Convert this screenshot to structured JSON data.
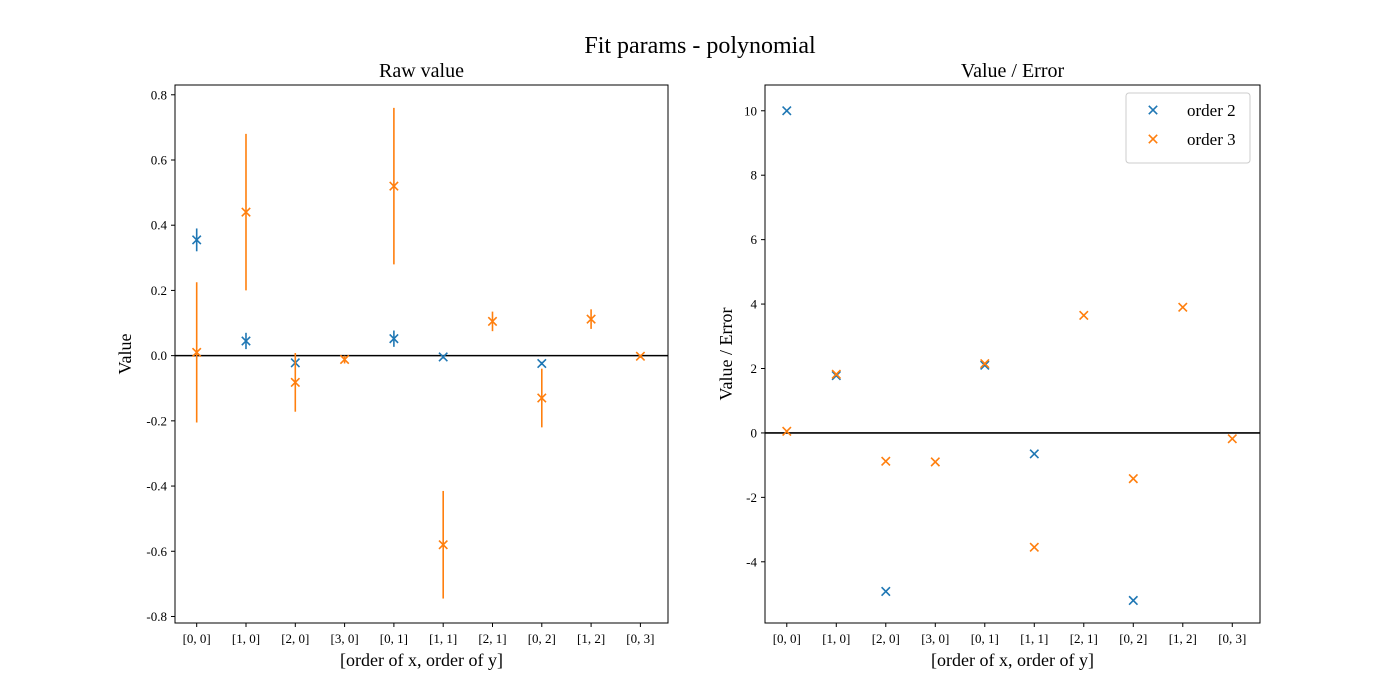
{
  "figure": {
    "suptitle": "Fit params - polynomial",
    "colors": {
      "order2": "#1f77b4",
      "order3": "#ff7f0e"
    }
  },
  "chart_data": [
    {
      "type": "scatter",
      "title": "Raw value",
      "xlabel": "[order of x, order of y]",
      "ylabel": "Value",
      "categories": [
        "[0, 0]",
        "[1, 0]",
        "[2, 0]",
        "[3, 0]",
        "[0, 1]",
        "[1, 1]",
        "[2, 1]",
        "[0, 2]",
        "[1, 2]",
        "[0, 3]"
      ],
      "ylim": [
        -0.82,
        0.83
      ],
      "yticks": [
        -0.8,
        -0.6,
        -0.4,
        -0.2,
        0.0,
        0.2,
        0.4,
        0.6,
        0.8
      ],
      "ytick_labels": [
        "-0.8",
        "-0.6",
        "-0.4",
        "-0.2",
        "0.0",
        "0.2",
        "0.4",
        "0.6",
        "0.8"
      ],
      "reference_line": 0,
      "series": [
        {
          "color": "#1f77b4",
          "points": [
            {
              "x": 0,
              "y": 0.355,
              "err": 0.035
            },
            {
              "x": 1,
              "y": 0.045,
              "err": 0.025
            },
            {
              "x": 2,
              "y": -0.022,
              "err": 0.005
            },
            {
              "x": 4,
              "y": 0.052,
              "err": 0.025
            },
            {
              "x": 5,
              "y": -0.004,
              "err": 0.005
            },
            {
              "x": 7,
              "y": -0.024,
              "err": 0.005
            }
          ]
        },
        {
          "color": "#ff7f0e",
          "points": [
            {
              "x": 0,
              "y": 0.01,
              "err": 0.215
            },
            {
              "x": 1,
              "y": 0.44,
              "err": 0.24
            },
            {
              "x": 2,
              "y": -0.082,
              "err": 0.09
            },
            {
              "x": 3,
              "y": -0.012,
              "err": 0.012
            },
            {
              "x": 4,
              "y": 0.52,
              "err": 0.24
            },
            {
              "x": 5,
              "y": -0.58,
              "err": 0.165
            },
            {
              "x": 6,
              "y": 0.105,
              "err": 0.03
            },
            {
              "x": 7,
              "y": -0.13,
              "err": 0.09
            },
            {
              "x": 8,
              "y": 0.112,
              "err": 0.03
            },
            {
              "x": 9,
              "y": -0.002,
              "err": 0.005
            }
          ]
        }
      ]
    },
    {
      "type": "scatter",
      "title": "Value / Error",
      "xlabel": "[order of x, order of y]",
      "ylabel": "Value / Error",
      "categories": [
        "[0, 0]",
        "[1, 0]",
        "[2, 0]",
        "[3, 0]",
        "[0, 1]",
        "[1, 1]",
        "[2, 1]",
        "[0, 2]",
        "[1, 2]",
        "[0, 3]"
      ],
      "ylim": [
        -5.9,
        10.8
      ],
      "yticks": [
        -4,
        -2,
        0,
        2,
        4,
        6,
        8,
        10
      ],
      "ytick_labels": [
        "-4",
        "-2",
        "0",
        "2",
        "4",
        "6",
        "8",
        "10"
      ],
      "reference_line": 0,
      "legend": "top-right",
      "series": [
        {
          "name": "order 2",
          "color": "#1f77b4",
          "points": [
            {
              "x": 0,
              "y": 10.0
            },
            {
              "x": 1,
              "y": 1.78
            },
            {
              "x": 2,
              "y": -4.92
            },
            {
              "x": 4,
              "y": 2.1
            },
            {
              "x": 5,
              "y": -0.65
            },
            {
              "x": 7,
              "y": -5.2
            }
          ]
        },
        {
          "name": "order 3",
          "color": "#ff7f0e",
          "points": [
            {
              "x": 0,
              "y": 0.05
            },
            {
              "x": 1,
              "y": 1.82
            },
            {
              "x": 2,
              "y": -0.88
            },
            {
              "x": 3,
              "y": -0.9
            },
            {
              "x": 4,
              "y": 2.15
            },
            {
              "x": 5,
              "y": -3.55
            },
            {
              "x": 6,
              "y": 3.65
            },
            {
              "x": 7,
              "y": -1.42
            },
            {
              "x": 8,
              "y": 3.9
            },
            {
              "x": 9,
              "y": -0.18
            }
          ]
        }
      ]
    }
  ]
}
